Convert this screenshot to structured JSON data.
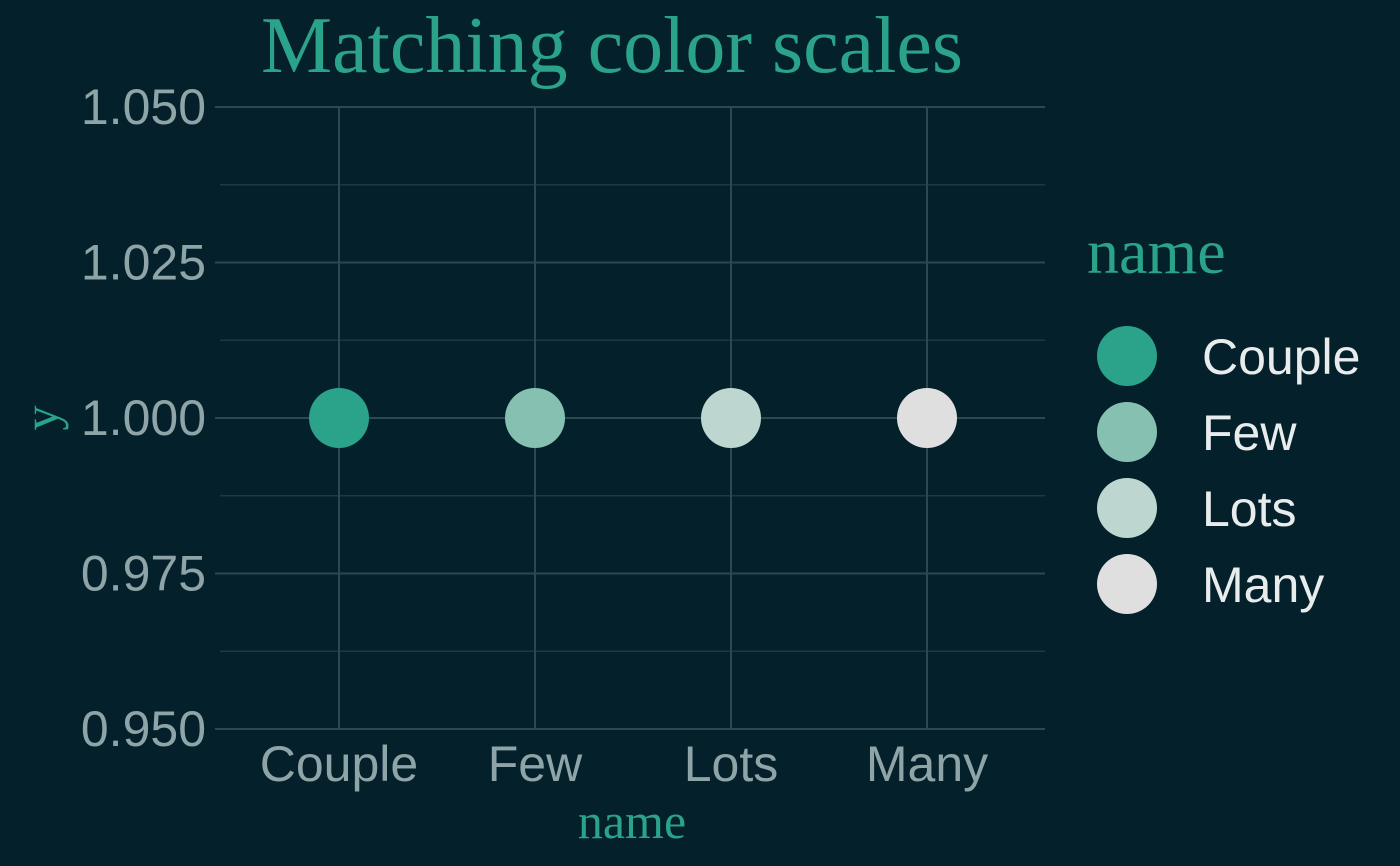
{
  "colors": {
    "background": "#03202b",
    "accent": "#2aa38a",
    "axis_text": "#8ea4a7",
    "legend_text": "#e8ecec",
    "grid_major": "#2c4850",
    "grid_minor": "#1c3a43"
  },
  "chart_data": {
    "type": "scatter",
    "title": "Matching color scales",
    "xlabel": "name",
    "ylabel": "y",
    "categories": [
      "Couple",
      "Few",
      "Lots",
      "Many"
    ],
    "values": [
      1.0,
      1.0,
      1.0,
      1.0
    ],
    "point_colors": [
      "#2aa38a",
      "#85c0b1",
      "#bdd6cf",
      "#dfdfe0"
    ],
    "ylim": [
      0.95,
      1.05
    ],
    "yticks": [
      0.95,
      0.975,
      1.0,
      1.025,
      1.05
    ],
    "ytick_labels": [
      "0.950",
      "0.975",
      "1.000",
      "1.025",
      "1.050"
    ],
    "grid": true,
    "legend": {
      "title": "name",
      "position": "right",
      "items": [
        "Couple",
        "Few",
        "Lots",
        "Many"
      ]
    }
  }
}
